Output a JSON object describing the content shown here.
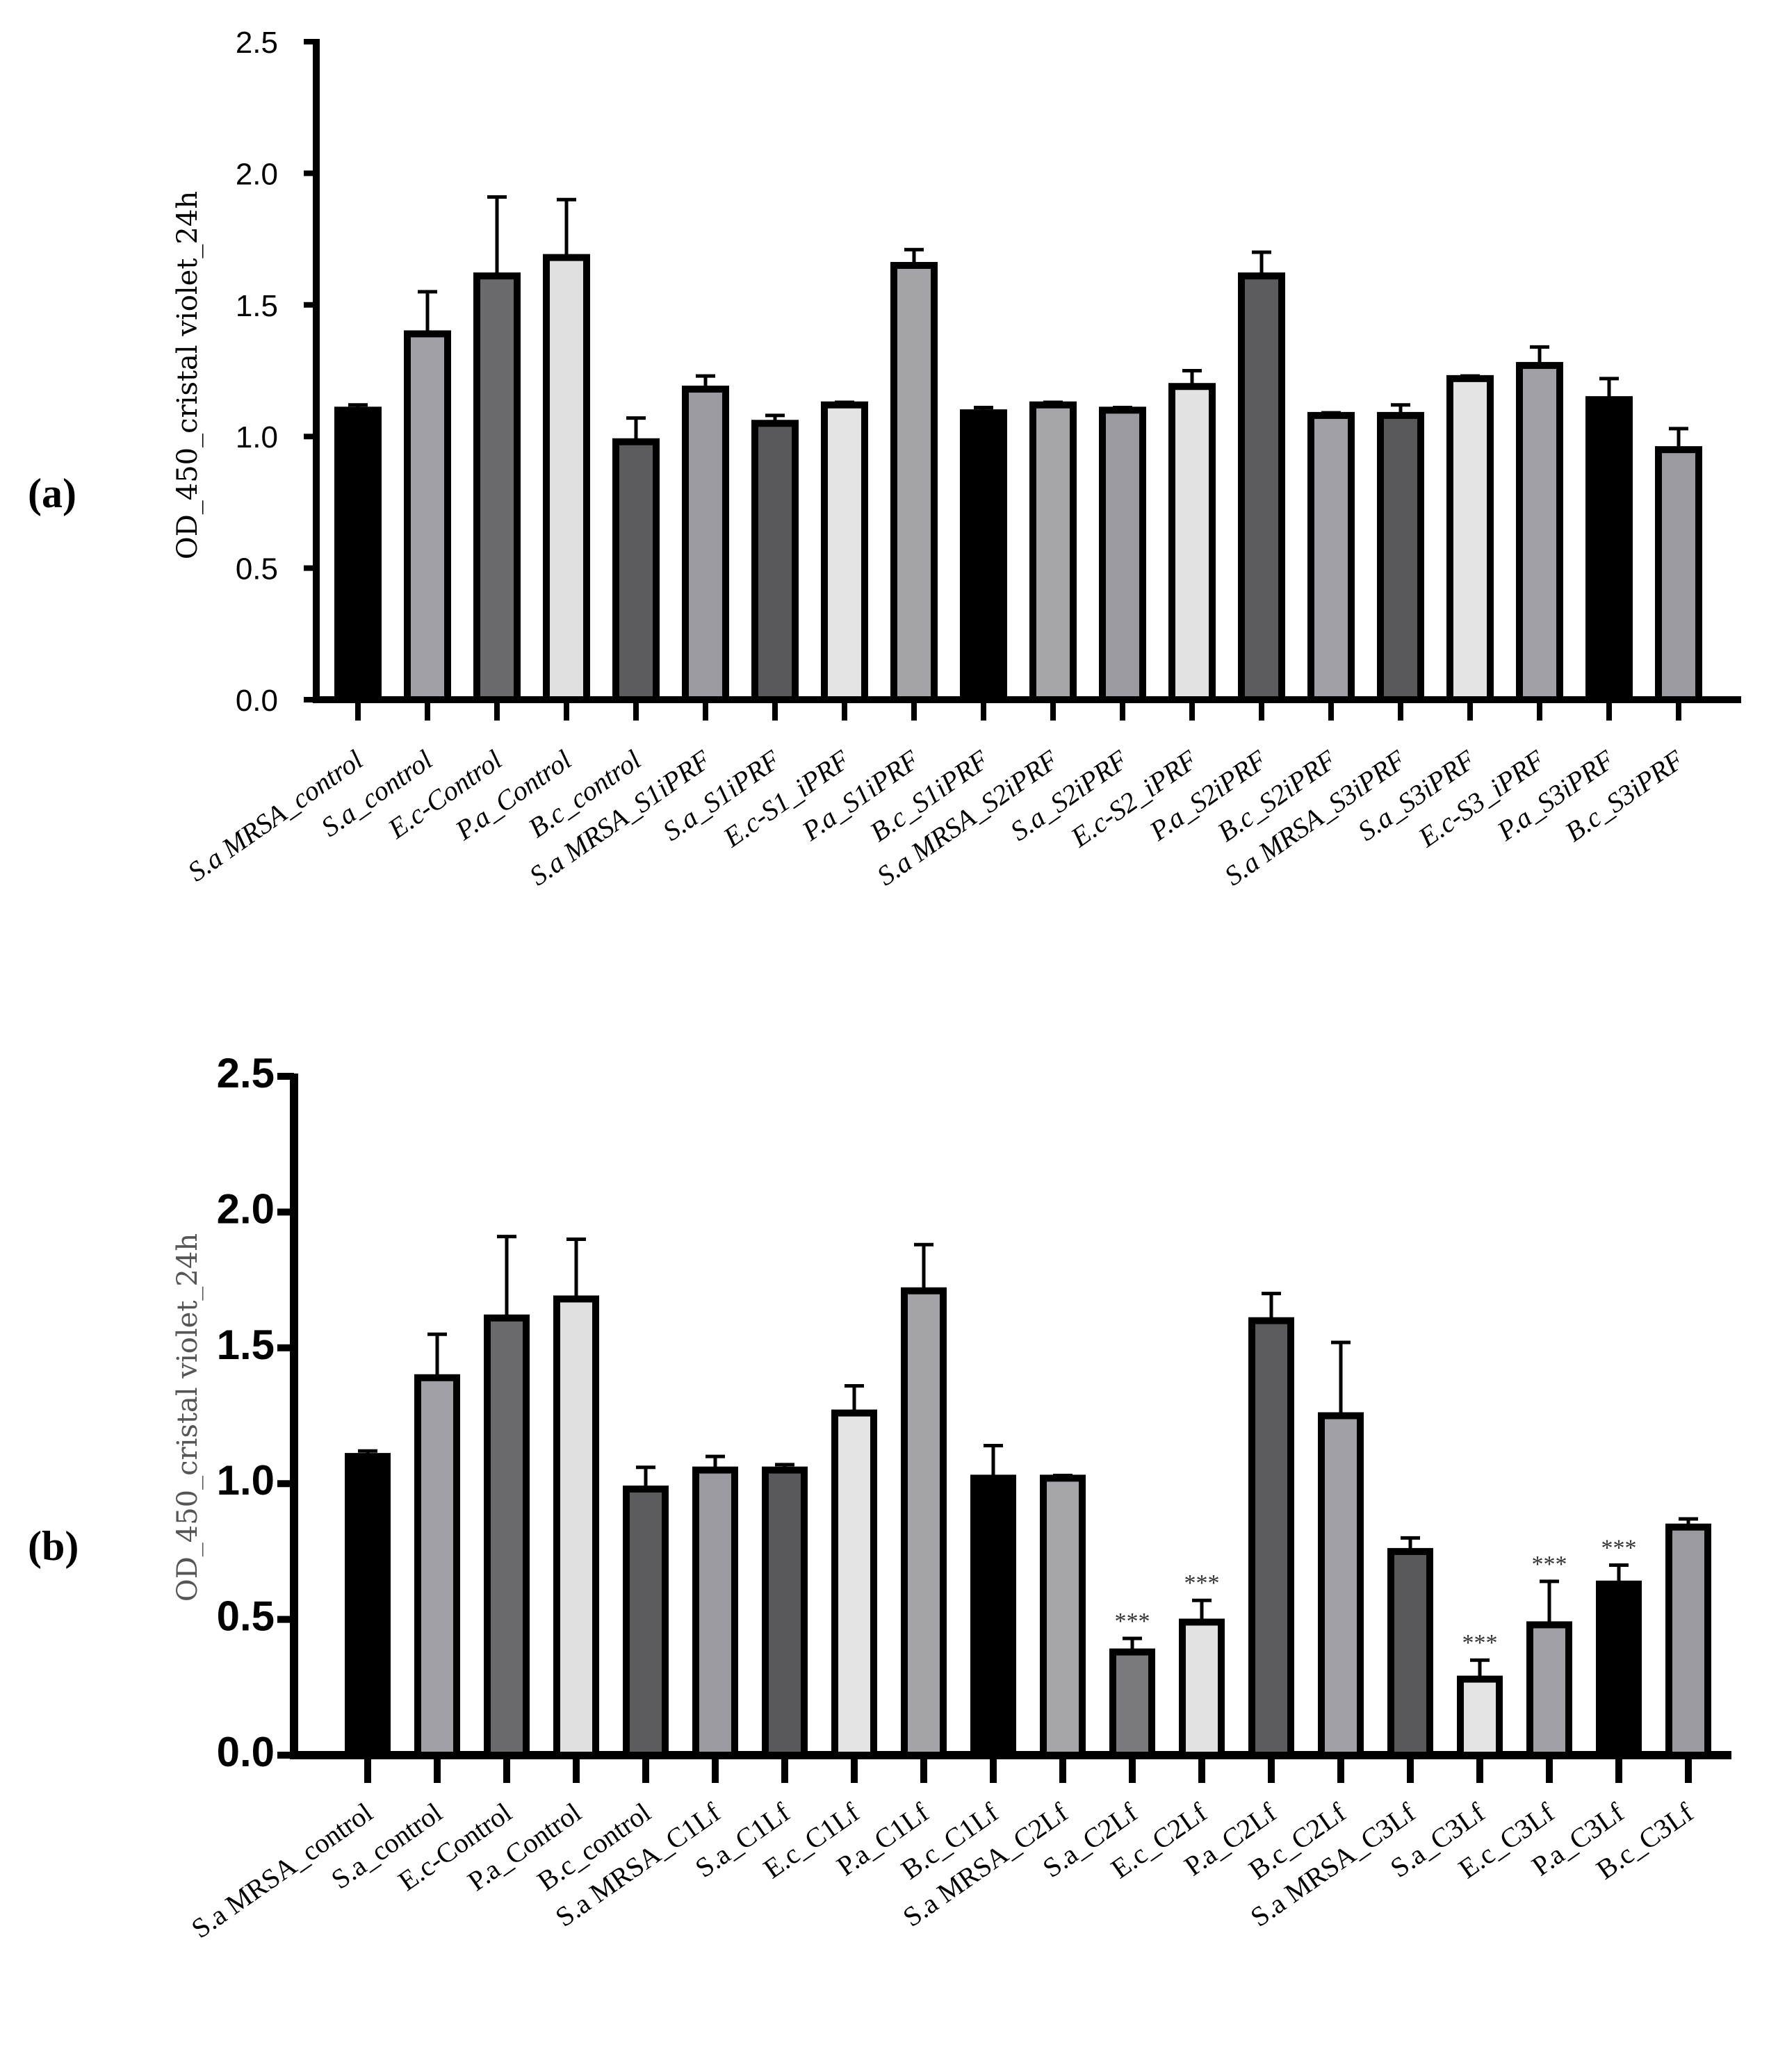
{
  "figure": {
    "panel_a_label": "(a)",
    "panel_b_label": "(b)"
  },
  "chart_data": [
    {
      "type": "bar",
      "panel": "(a)",
      "ylabel": "OD_450_cristal violet_24h",
      "xlabel": "",
      "ylim": [
        0,
        2.5
      ],
      "yticks": [
        "0.0",
        "0.5",
        "1.0",
        "1.5",
        "2.0",
        "2.5"
      ],
      "categories": [
        "S.a MRSA_control",
        "S.a_control",
        "E.c-Control",
        "P.a_Control",
        "B.c_control",
        "S.a MRSA_S1iPRF",
        "S.a_S1iPRF",
        "E.c-S1_iPRF",
        "P.a_S1iPRF",
        "B.c_S1iPRF",
        "S.a MRSA_S2iPRF",
        "S.a_S2iPRF",
        "E.c-S2_iPRF",
        "P.a_S2iPRF",
        "B.c_S2iPRF",
        "S.a MRSA_S3iPRF",
        "S.a_S3iPRF",
        "E.c-S3_iPRF",
        "P.a_S3iPRF",
        "B.c_S3iPRF"
      ],
      "values": [
        1.1,
        1.39,
        1.61,
        1.68,
        0.98,
        1.18,
        1.05,
        1.12,
        1.65,
        1.09,
        1.12,
        1.1,
        1.19,
        1.61,
        1.08,
        1.08,
        1.22,
        1.27,
        1.14,
        0.95
      ],
      "errors": [
        0.02,
        0.16,
        0.3,
        0.22,
        0.09,
        0.05,
        0.03,
        0.01,
        0.06,
        0.02,
        0.01,
        0.01,
        0.06,
        0.09,
        0.01,
        0.04,
        0.01,
        0.07,
        0.08,
        0.08
      ],
      "colors": [
        "#000000",
        "#a0a0a6",
        "#6a6a6e",
        "#e0e0e0",
        "#5c5c5f",
        "#9a9aa0",
        "#59595c",
        "#e4e4e4",
        "#a3a3a8",
        "#000000",
        "#a4a4a9",
        "#9a9aa0",
        "#e2e2e2",
        "#5c5c5f",
        "#a0a0a6",
        "#59595c",
        "#e4e4e4",
        "#a0a0a6",
        "#000000",
        "#9a9aa0"
      ],
      "annotations": []
    },
    {
      "type": "bar",
      "panel": "(b)",
      "ylabel": "OD_450_cristal violet_24h",
      "xlabel": "",
      "ylim": [
        0,
        2.5
      ],
      "yticks": [
        "0.0",
        "0.5",
        "1.0",
        "1.5",
        "2.0",
        "2.5"
      ],
      "categories": [
        "S.a MRSA_control",
        "S.a_control",
        "E.c-Control",
        "P.a_Control",
        "B.c_control",
        "S.a MRSA_C1Lf",
        "S.a_C1Lf",
        "E.c_C1Lf",
        "P.a_C1Lf",
        "B.c_C1Lf",
        "S.a MRSA_C2Lf",
        "S.a_C2Lf",
        "E.c_C2Lf",
        "P.a_C2Lf",
        "B.c_C2Lf",
        "S.a MRSA_C3Lf",
        "S.a_C3Lf",
        "E.c_C3Lf",
        "P.a_C3Lf",
        "B.c_C3Lf"
      ],
      "values": [
        1.1,
        1.39,
        1.61,
        1.68,
        0.98,
        1.05,
        1.05,
        1.26,
        1.71,
        1.02,
        1.02,
        0.38,
        0.49,
        1.6,
        1.25,
        0.75,
        0.28,
        0.48,
        0.63,
        0.84
      ],
      "errors": [
        0.02,
        0.16,
        0.3,
        0.22,
        0.08,
        0.05,
        0.02,
        0.1,
        0.17,
        0.12,
        0.01,
        0.05,
        0.08,
        0.1,
        0.27,
        0.05,
        0.07,
        0.16,
        0.07,
        0.03
      ],
      "colors": [
        "#000000",
        "#a0a0a6",
        "#6a6a6e",
        "#e0e0e0",
        "#5c5c5f",
        "#9a9aa0",
        "#59595c",
        "#e4e4e4",
        "#a3a3a8",
        "#000000",
        "#a4a4a9",
        "#7a7a7e",
        "#e2e2e2",
        "#5c5c5f",
        "#a0a0a6",
        "#59595c",
        "#e4e4e4",
        "#a0a0a6",
        "#000000",
        "#9a9aa0"
      ],
      "annotations": [
        "",
        "",
        "",
        "",
        "",
        "",
        "",
        "",
        "",
        "",
        "",
        "***",
        "***",
        "",
        "",
        "",
        "***",
        "***",
        "***",
        ""
      ]
    }
  ]
}
